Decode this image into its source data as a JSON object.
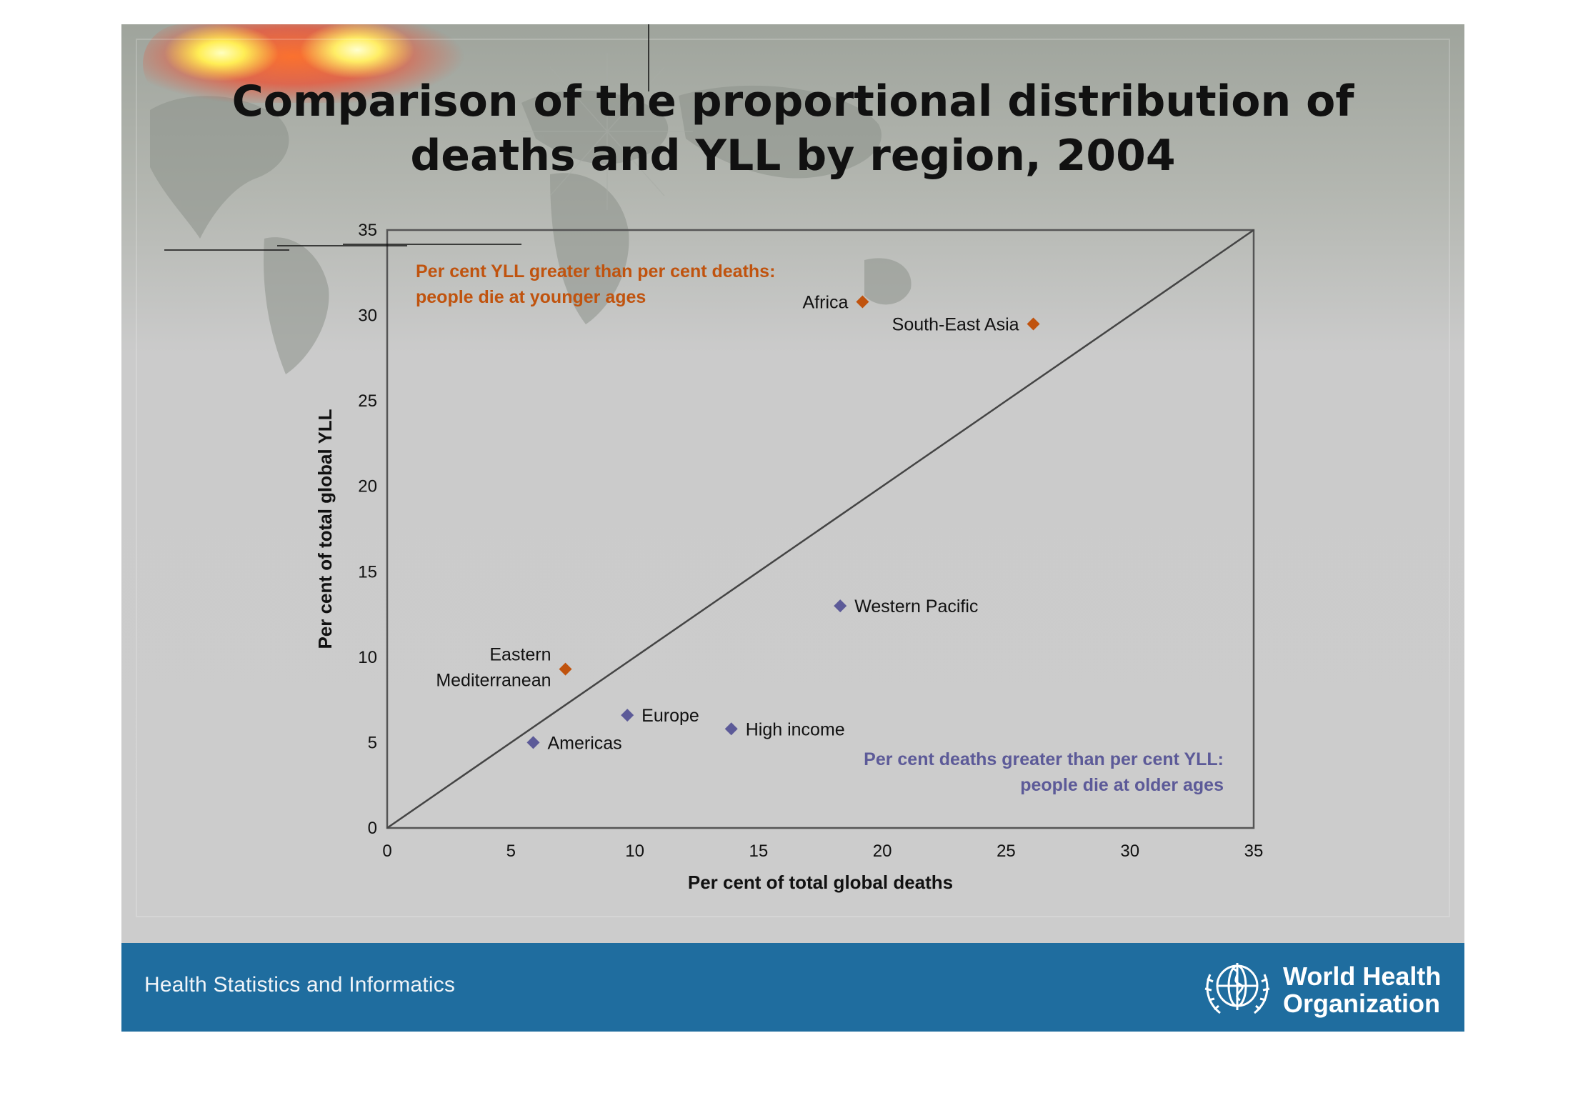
{
  "title": {
    "line1": "Comparison of the proportional distribution of",
    "line2": "deaths and YLL by region, 2004"
  },
  "footer": {
    "text": "Health Statistics and Informatics",
    "org_line1": "World Health",
    "org_line2": "Organization",
    "logo_icon": "who-emblem-icon"
  },
  "colors": {
    "younger": "#c0530e",
    "older": "#5c5a98",
    "footer_bar": "#1f6d9f"
  },
  "chart_data": {
    "type": "scatter",
    "xlabel": "Per cent of total global deaths",
    "ylabel": "Per cent of total global YLL",
    "xlim": [
      0,
      35
    ],
    "ylim": [
      0,
      35
    ],
    "x_ticks": [
      0,
      5,
      10,
      15,
      20,
      25,
      30,
      35
    ],
    "y_ticks": [
      0,
      5,
      10,
      15,
      20,
      25,
      30,
      35
    ],
    "grid": false,
    "reference_line": {
      "type": "diagonal",
      "from": [
        0,
        0
      ],
      "to": [
        35,
        35
      ]
    },
    "points": [
      {
        "label": "Africa",
        "x": 19.2,
        "y": 30.8,
        "group": "younger",
        "label_side": "left"
      },
      {
        "label": "South-East Asia",
        "x": 26.1,
        "y": 29.5,
        "group": "younger",
        "label_side": "left"
      },
      {
        "label": "Eastern Mediterranean",
        "x": 7.2,
        "y": 9.3,
        "group": "younger",
        "label_side": "left-two-line",
        "label_lines": [
          "Eastern",
          "Mediterranean"
        ]
      },
      {
        "label": "Western Pacific",
        "x": 18.3,
        "y": 13.0,
        "group": "older",
        "label_side": "right"
      },
      {
        "label": "Europe",
        "x": 9.7,
        "y": 6.6,
        "group": "older",
        "label_side": "right"
      },
      {
        "label": "High income",
        "x": 13.9,
        "y": 5.8,
        "group": "older",
        "label_side": "right"
      },
      {
        "label": "Americas",
        "x": 5.9,
        "y": 5.0,
        "group": "older",
        "label_side": "right"
      }
    ],
    "annotations": [
      {
        "group": "younger",
        "position": "top-left",
        "lines": [
          "Per cent YLL greater than per cent deaths:",
          "people die at younger ages"
        ]
      },
      {
        "group": "older",
        "position": "bottom-right",
        "lines": [
          "Per cent deaths greater than per cent YLL:",
          "people die at older ages"
        ]
      }
    ]
  }
}
